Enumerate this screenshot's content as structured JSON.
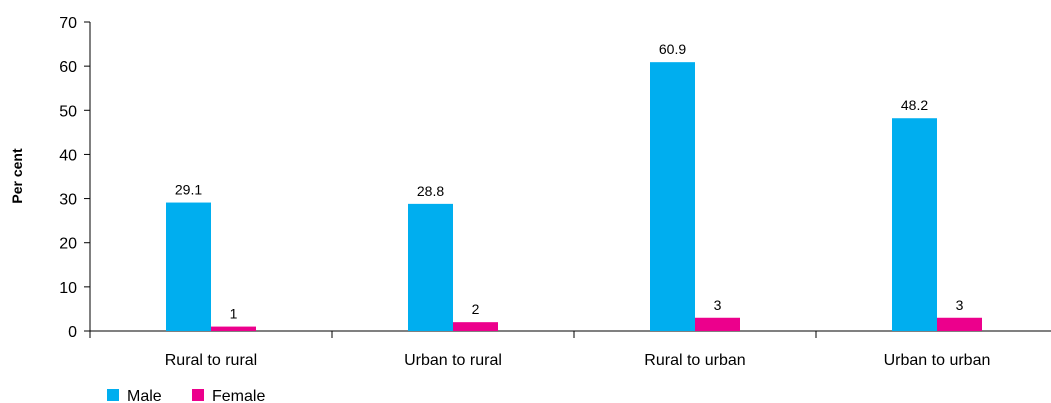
{
  "chart_data": {
    "type": "bar",
    "title": "",
    "xlabel": "",
    "ylabel": "Per cent",
    "ylim": [
      0,
      70
    ],
    "yticks": [
      0,
      10,
      20,
      30,
      40,
      50,
      60,
      70
    ],
    "categories": [
      "Rural to rural",
      "Urban to rural",
      "Rural to urban",
      "Urban to urban"
    ],
    "series": [
      {
        "name": "Male",
        "color": "#00aeef",
        "values": [
          29.1,
          28.8,
          60.9,
          48.2
        ],
        "labels": [
          "29.1",
          "28.8",
          "60.9",
          "48.2"
        ]
      },
      {
        "name": "Female",
        "color": "#ec008c",
        "values": [
          1,
          2,
          3,
          3
        ],
        "labels": [
          "1",
          "2",
          "3",
          "3"
        ]
      }
    ],
    "grid": false,
    "legend": "bottom-left"
  }
}
